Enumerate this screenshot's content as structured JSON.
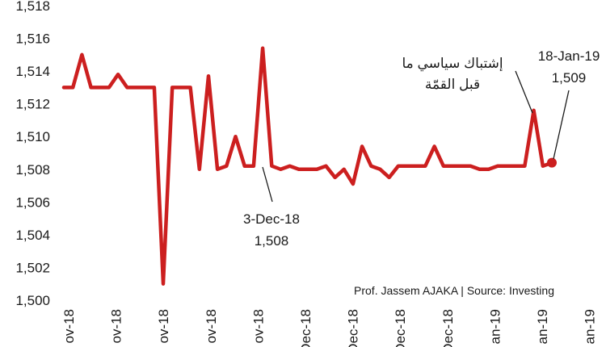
{
  "chart_data": {
    "type": "line",
    "title": "",
    "xlabel": "",
    "ylabel": "",
    "ylim": [
      1500,
      1518
    ],
    "y_ticks": [
      "1,500",
      "1,502",
      "1,504",
      "1,506",
      "1,508",
      "1,510",
      "1,512",
      "1,514",
      "1,516",
      "1,518"
    ],
    "x_tick_labels": [
      "ov-18",
      "ov-18",
      "ov-18",
      "ov-18",
      "ov-18",
      "Dec-18",
      "Dec-18",
      "Dec-18",
      "Dec-18",
      "an-19",
      "an-19",
      "an-19"
    ],
    "grid": false,
    "legend": "none",
    "line_color": "#cc1f1f",
    "series": [
      {
        "values": [
          1513,
          1513,
          1515,
          1513,
          1513,
          1513,
          1513.8,
          1513,
          1513,
          1513,
          1513,
          1501,
          1513,
          1513,
          1513,
          1508,
          1513.7,
          1508,
          1508.2,
          1510,
          1508.2,
          1508.2,
          1515.4,
          1508.2,
          1508,
          1508.2,
          1508,
          1508,
          1508,
          1508.2,
          1507.5,
          1508,
          1507.1,
          1509.4,
          1508.2,
          1508,
          1507.5,
          1508.2,
          1508.2,
          1508.2,
          1508.2,
          1509.4,
          1508.2,
          1508.2,
          1508.2,
          1508.2,
          1508,
          1508,
          1508.2,
          1508.2,
          1508.2,
          1508.2,
          1511.6,
          1508.2,
          1508.4
        ]
      }
    ],
    "annotations": [
      {
        "date": "3-Dec-18",
        "value": "1,508"
      },
      {
        "date": "18-Jan-19",
        "value": "1,509"
      },
      {
        "text_line1": "إشتباك سياسي ما",
        "text_line2": "قبل القمّة"
      }
    ],
    "credit": "Prof. Jassem AJAKA | Source: Investing"
  }
}
